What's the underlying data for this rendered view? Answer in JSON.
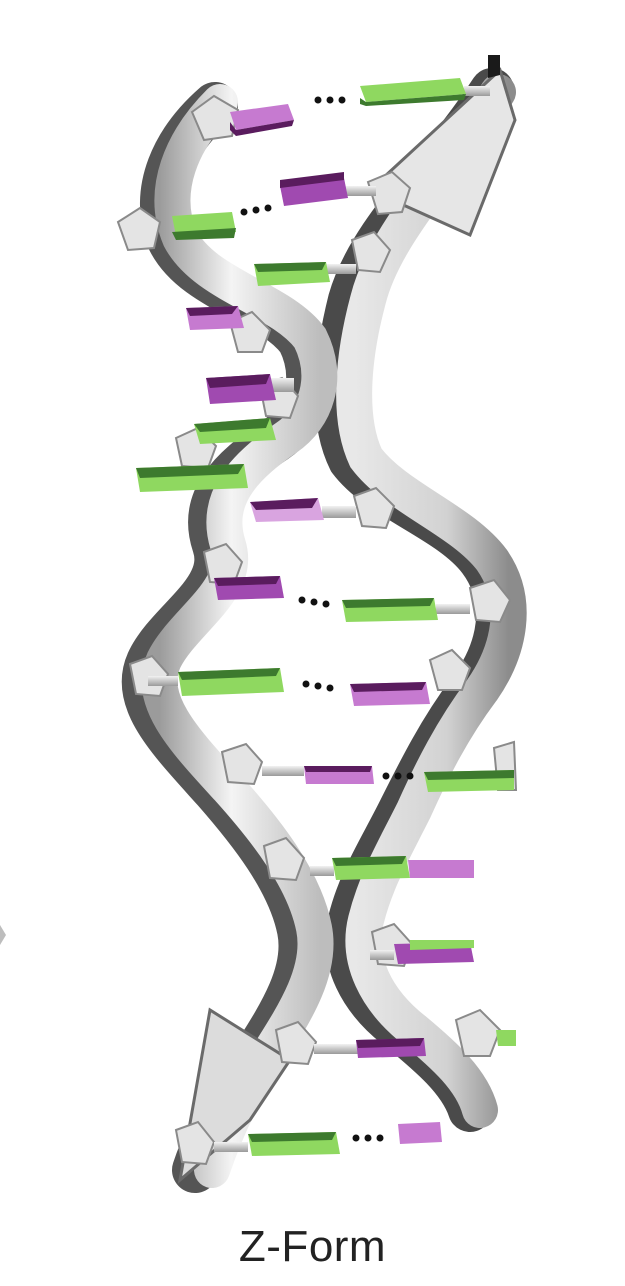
{
  "diagram": {
    "label": "Z-Form",
    "colors": {
      "backbone_light": "#f0f0f0",
      "backbone_mid": "#cfcfcf",
      "backbone_dark": "#4a4a4a",
      "base_green_light": "#8fd860",
      "base_green_dark": "#3d7a2e",
      "base_purple_light": "#c67ad0",
      "base_purple_dark": "#5a1c5e",
      "connector": "#c8c8c8",
      "hbond_dots": "#111111"
    },
    "icons": {
      "backbone": "helix-backbone-ribbon",
      "base": "nucleotide-base-slab",
      "hbond": "hydrogen-bond-dots"
    }
  }
}
